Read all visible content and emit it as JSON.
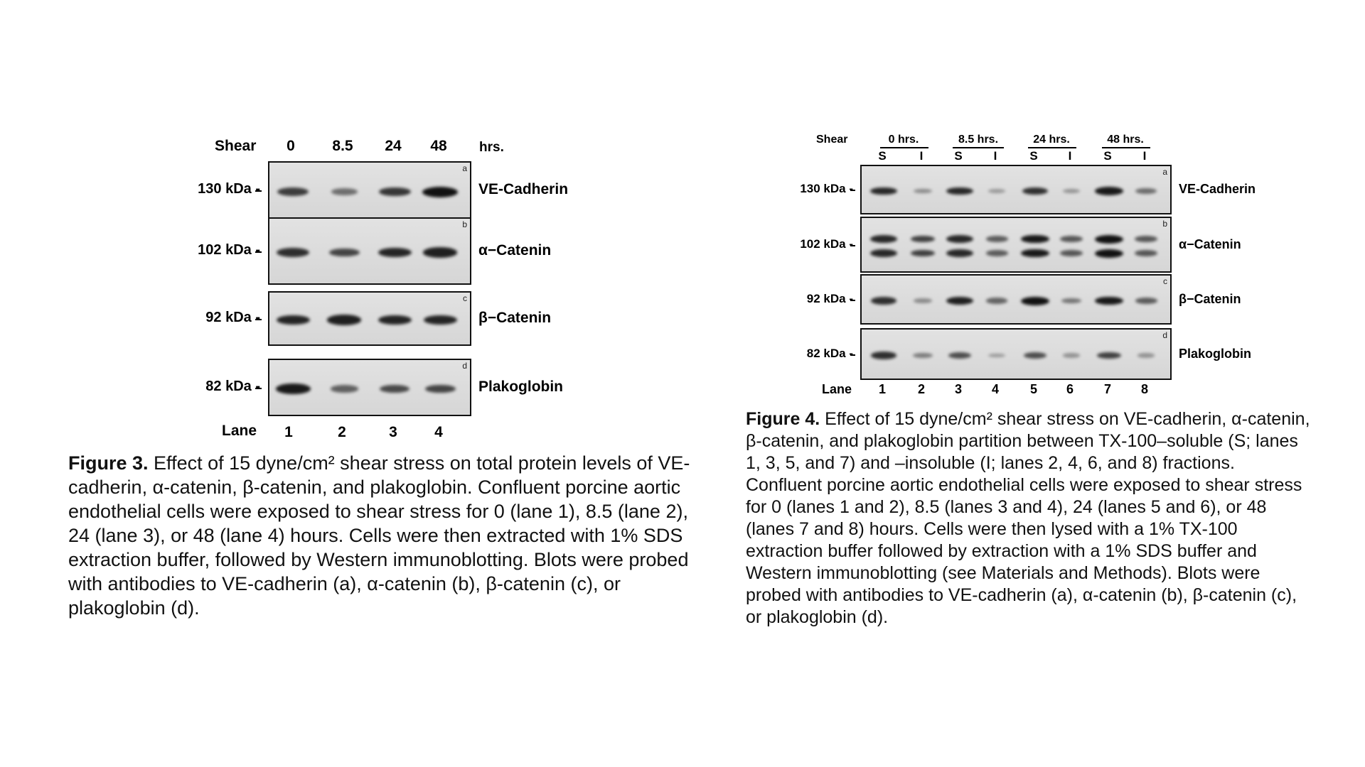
{
  "figure3": {
    "shear_label": "Shear",
    "shear_values": [
      "0",
      "8.5",
      "24",
      "48"
    ],
    "time_unit": "hrs.",
    "lane_label": "Lane",
    "lanes": [
      "1",
      "2",
      "3",
      "4"
    ],
    "panels": [
      {
        "letter": "a",
        "mw": "130 kDa -",
        "protein": "VE-Cadherin",
        "intensity": [
          0.7,
          0.35,
          0.75,
          1.0
        ]
      },
      {
        "letter": "b",
        "mw": "102 kDa -",
        "protein": "α−Catenin",
        "intensity": [
          0.8,
          0.65,
          0.85,
          0.9
        ]
      },
      {
        "letter": "c",
        "mw": "92 kDa -",
        "protein": "β−Catenin",
        "intensity": [
          0.85,
          0.9,
          0.85,
          0.85
        ]
      },
      {
        "letter": "d",
        "mw": "82 kDa -",
        "protein": "Plakoglobin",
        "intensity": [
          0.95,
          0.45,
          0.6,
          0.65
        ]
      }
    ],
    "caption_title": "Figure 3.",
    "caption_text": "Effect of 15 dyne/cm² shear stress on total protein levels of VE-cadherin, α-catenin, β-catenin, and plakoglobin. Confluent porcine aortic endothelial cells were exposed to shear stress for 0 (lane 1), 8.5 (lane 2), 24 (lane 3), or 48 (lane 4) hours. Cells were then extracted with 1% SDS extraction buffer, followed by Western immunoblotting. Blots were probed with antibodies to VE-cadherin (a), α-catenin (b), β-catenin (c), or plakoglobin (d)."
  },
  "figure4": {
    "shear_label": "Shear",
    "conditions": [
      "0 hrs.",
      "8.5 hrs.",
      "24 hrs.",
      "48 hrs."
    ],
    "fractions": [
      "S",
      "I",
      "S",
      "I",
      "S",
      "I",
      "S",
      "I"
    ],
    "lane_label": "Lane",
    "lanes": [
      "1",
      "2",
      "3",
      "4",
      "5",
      "6",
      "7",
      "8"
    ],
    "panels": [
      {
        "letter": "a",
        "mw": "130 kDa -",
        "protein": "VE-Cadherin",
        "intensity": [
          0.85,
          0.2,
          0.85,
          0.1,
          0.8,
          0.15,
          0.95,
          0.4
        ]
      },
      {
        "letter": "b",
        "mw": "102 kDa -",
        "protein": "α−Catenin",
        "intensity": [
          0.85,
          0.7,
          0.85,
          0.5,
          0.95,
          0.55,
          1.0,
          0.55
        ]
      },
      {
        "letter": "c",
        "mw": "92 kDa -",
        "protein": "β−Catenin",
        "intensity": [
          0.8,
          0.2,
          0.9,
          0.45,
          1.0,
          0.35,
          0.95,
          0.5
        ]
      },
      {
        "letter": "d",
        "mw": "82 kDa -",
        "protein": "Plakoglobin",
        "intensity": [
          0.8,
          0.3,
          0.6,
          0.1,
          0.6,
          0.15,
          0.7,
          0.15
        ]
      }
    ],
    "caption_title": "Figure 4.",
    "caption_text": "Effect of 15 dyne/cm² shear stress on VE-cadherin, α-catenin, β-catenin, and plakoglobin partition between TX-100–soluble (S; lanes 1, 3, 5, and 7) and –insoluble (I; lanes 2, 4, 6, and 8) fractions. Confluent porcine aortic endothelial cells were exposed to shear stress for 0 (lanes 1 and 2), 8.5 (lanes 3 and 4), 24 (lanes 5 and 6), or 48 (lanes 7 and 8) hours. Cells were then lysed with a 1% TX-100 extraction buffer followed by extraction with a 1% SDS buffer and Western immunoblotting (see Materials and Methods). Blots were probed with antibodies to VE-cadherin (a), α-catenin (b), β-catenin (c), or plakoglobin (d)."
  }
}
